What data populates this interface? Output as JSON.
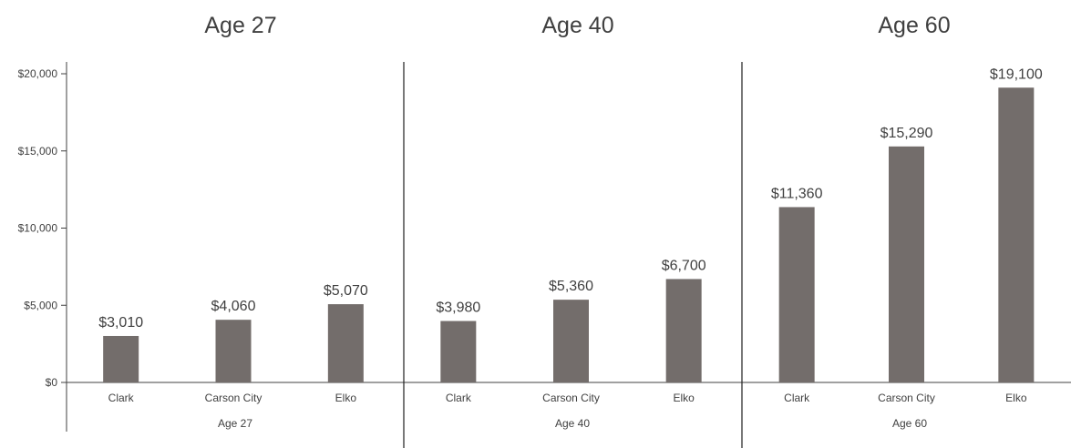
{
  "chart_data": {
    "type": "bar",
    "ylim": [
      0,
      20000
    ],
    "yticks": [
      "$0",
      "$5,000",
      "$10,000",
      "$15,000",
      "$20,000"
    ],
    "ytick_values": [
      0,
      5000,
      10000,
      15000,
      20000
    ],
    "bar_color": "#736d6b",
    "grid": false,
    "panels": [
      {
        "title": "Age 27",
        "group_label": "Age 27",
        "categories": [
          "Clark",
          "Carson City",
          "Elko"
        ],
        "values": [
          3010,
          4060,
          5070
        ],
        "labels": [
          "$3,010",
          "$4,060",
          "$5,070"
        ]
      },
      {
        "title": "Age 40",
        "group_label": "Age 40",
        "categories": [
          "Clark",
          "Carson City",
          "Elko"
        ],
        "values": [
          3980,
          5360,
          6700
        ],
        "labels": [
          "$3,980",
          "$5,360",
          "$6,700"
        ]
      },
      {
        "title": "Age 60",
        "group_label": "Age 60",
        "categories": [
          "Clark",
          "Carson City",
          "Elko"
        ],
        "values": [
          11360,
          15290,
          19100
        ],
        "labels": [
          "$11,360",
          "$15,290",
          "$19,100"
        ]
      }
    ]
  }
}
